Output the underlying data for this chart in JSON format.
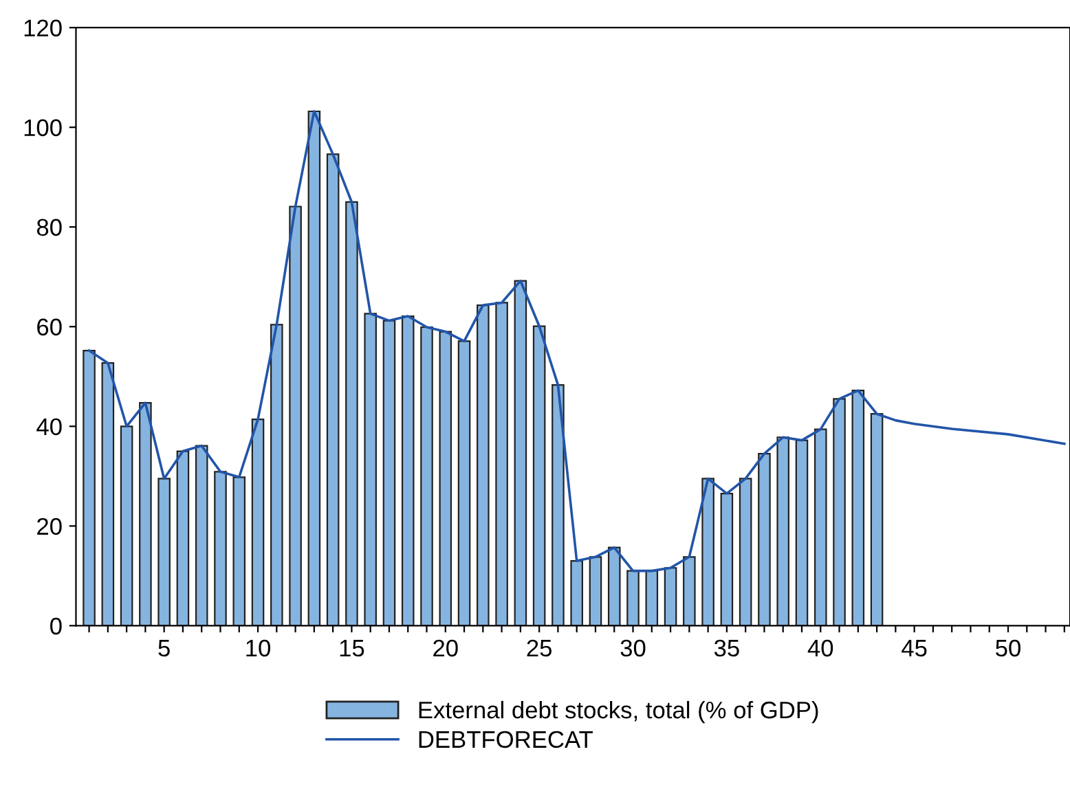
{
  "chart_data": {
    "type": "bar",
    "x": [
      1,
      2,
      3,
      4,
      5,
      6,
      7,
      8,
      9,
      10,
      11,
      12,
      13,
      14,
      15,
      16,
      17,
      18,
      19,
      20,
      21,
      22,
      23,
      24,
      25,
      26,
      27,
      28,
      29,
      30,
      31,
      32,
      33,
      34,
      35,
      36,
      37,
      38,
      39,
      40,
      41,
      42,
      43
    ],
    "series": [
      {
        "name": "External debt stocks, total (% of GDP)",
        "color": "#86b4e0",
        "values": [
          55.2,
          52.7,
          40,
          44.7,
          29.5,
          35,
          36.1,
          30.9,
          29.8,
          41.4,
          60.4,
          84.1,
          103.2,
          94.6,
          85,
          62.6,
          61.2,
          62.1,
          59.9,
          59,
          57.1,
          64.3,
          64.8,
          69.2,
          60.1,
          48.3,
          13,
          13.8,
          15.7,
          11,
          11,
          11.6,
          13.8,
          29.5,
          26.5,
          29.5,
          34.5,
          37.8,
          37.2,
          39.4,
          45.5,
          47.2,
          42.5
        ]
      },
      {
        "name": "DEBTFORECAT",
        "type": "line",
        "color": "#2255a8",
        "x": [
          1,
          2,
          3,
          4,
          5,
          6,
          7,
          8,
          9,
          10,
          11,
          12,
          13,
          14,
          15,
          16,
          17,
          18,
          19,
          20,
          21,
          22,
          23,
          24,
          25,
          26,
          27,
          28,
          29,
          30,
          31,
          32,
          33,
          34,
          35,
          36,
          37,
          38,
          39,
          40,
          41,
          42,
          43,
          44,
          45,
          47,
          50,
          53
        ],
        "values": [
          55.2,
          52.7,
          40,
          44.7,
          29.5,
          35,
          36.1,
          30.9,
          29.8,
          41.4,
          60.4,
          84.1,
          103.2,
          94.6,
          85,
          62.6,
          61.2,
          62.1,
          59.9,
          59,
          57.1,
          64.3,
          64.8,
          69.2,
          60.1,
          48.3,
          13,
          13.8,
          15.7,
          11,
          11,
          11.6,
          13.8,
          29.5,
          26.5,
          29.5,
          34.5,
          37.8,
          37.2,
          39.4,
          45.5,
          47.2,
          42.5,
          41.2,
          40.5,
          39.5,
          38.4,
          36.5
        ]
      }
    ],
    "xlim": [
      0.3,
      53.3
    ],
    "ylim": [
      0,
      120
    ],
    "xticks": [
      {
        "value": 1,
        "label": null
      },
      {
        "value": 2,
        "label": null
      },
      {
        "value": 3,
        "label": null
      },
      {
        "value": 4,
        "label": null
      },
      5,
      {
        "value": 6,
        "label": null
      },
      {
        "value": 7,
        "label": null
      },
      {
        "value": 8,
        "label": null
      },
      {
        "value": 9,
        "label": null
      },
      10,
      {
        "value": 11,
        "label": null
      },
      {
        "value": 12,
        "label": null
      },
      {
        "value": 13,
        "label": null
      },
      {
        "value": 14,
        "label": null
      },
      15,
      {
        "value": 16,
        "label": null
      },
      {
        "value": 17,
        "label": null
      },
      {
        "value": 18,
        "label": null
      },
      {
        "value": 19,
        "label": null
      },
      20,
      {
        "value": 21,
        "label": null
      },
      {
        "value": 22,
        "label": null
      },
      {
        "value": 23,
        "label": null
      },
      {
        "value": 24,
        "label": null
      },
      25,
      {
        "value": 26,
        "label": null
      },
      {
        "value": 27,
        "label": null
      },
      {
        "value": 28,
        "label": null
      },
      {
        "value": 29,
        "label": null
      },
      30,
      {
        "value": 31,
        "label": null
      },
      {
        "value": 32,
        "label": null
      },
      {
        "value": 33,
        "label": null
      },
      {
        "value": 34,
        "label": null
      },
      35,
      {
        "value": 36,
        "label": null
      },
      {
        "value": 37,
        "label": null
      },
      {
        "value": 38,
        "label": null
      },
      {
        "value": 39,
        "label": null
      },
      40,
      {
        "value": 41,
        "label": null
      },
      {
        "value": 42,
        "label": null
      },
      {
        "value": 43,
        "label": null
      },
      {
        "value": 44,
        "label": null
      },
      45,
      {
        "value": 46,
        "label": null
      },
      {
        "value": 47,
        "label": null
      },
      {
        "value": 48,
        "label": null
      },
      {
        "value": 49,
        "label": null
      },
      50,
      {
        "value": 51,
        "label": null
      },
      {
        "value": 52,
        "label": null
      },
      {
        "value": 53,
        "label": null
      }
    ],
    "yticks": [
      0,
      20,
      40,
      60,
      80,
      100,
      120
    ],
    "grid": false,
    "legend": "bottom",
    "marker": "none",
    "line_style": "solid"
  }
}
